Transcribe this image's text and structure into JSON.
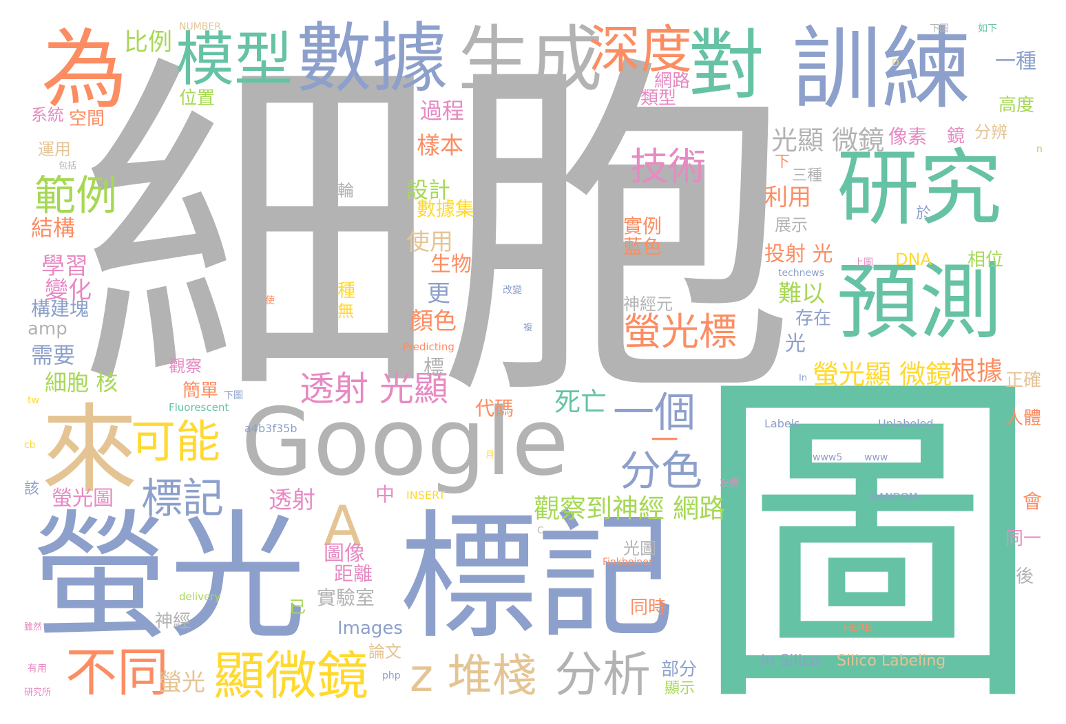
{
  "palette": {
    "gray": "#b3b3b3",
    "teal": "#66c2a5",
    "orange": "#fc8d62",
    "blue": "#8da0cb",
    "pink": "#e78ac3",
    "green": "#a6d854",
    "yellow": "#ffd92f",
    "tan": "#e5c494"
  },
  "words": [
    {
      "text": "細胞",
      "color": "gray"
    },
    {
      "text": "圖",
      "color": "teal"
    },
    {
      "text": "螢光",
      "color": "blue"
    },
    {
      "text": "標記",
      "color": "blue"
    },
    {
      "text": "訓練",
      "color": "blue"
    },
    {
      "text": "數據",
      "color": "blue"
    },
    {
      "text": "生成",
      "color": "gray"
    },
    {
      "text": "為",
      "color": "orange"
    },
    {
      "text": "模型",
      "color": "teal"
    },
    {
      "text": "深度",
      "color": "orange"
    },
    {
      "text": "對",
      "color": "teal"
    },
    {
      "text": "研究",
      "color": "teal"
    },
    {
      "text": "預測",
      "color": "teal"
    },
    {
      "text": "Google",
      "color": "gray"
    },
    {
      "text": "來",
      "color": "tan"
    },
    {
      "text": "A",
      "color": "tan"
    },
    {
      "text": "可能",
      "color": "yellow"
    },
    {
      "text": "顯微鏡",
      "color": "yellow"
    },
    {
      "text": "不同",
      "color": "orange"
    },
    {
      "text": "z 堆棧",
      "color": "tan"
    },
    {
      "text": "分析",
      "color": "gray"
    },
    {
      "text": "標記",
      "color": "blue"
    },
    {
      "text": "分色",
      "color": "blue"
    },
    {
      "text": "一個",
      "color": "blue"
    },
    {
      "text": "範例",
      "color": "green"
    },
    {
      "text": "比例",
      "color": "green"
    },
    {
      "text": "技術",
      "color": "pink"
    },
    {
      "text": "螢光標",
      "color": "orange"
    },
    {
      "text": "透射 光顯",
      "color": "pink"
    },
    {
      "text": "螢光顯 微鏡",
      "color": "yellow"
    },
    {
      "text": "觀察到神經 網路",
      "color": "green"
    },
    {
      "text": "死亡",
      "color": "teal"
    },
    {
      "text": "光顯 微鏡",
      "color": "gray"
    },
    {
      "text": "根據",
      "color": "orange"
    },
    {
      "text": "學習",
      "color": "pink"
    },
    {
      "text": "變化",
      "color": "pink"
    },
    {
      "text": "需要",
      "color": "blue"
    },
    {
      "text": "細胞 核",
      "color": "green"
    },
    {
      "text": "結構",
      "color": "orange"
    },
    {
      "text": "構建塊",
      "color": "blue"
    },
    {
      "text": "amp",
      "color": "gray"
    },
    {
      "text": "空間",
      "color": "orange"
    },
    {
      "text": "系統",
      "color": "pink"
    },
    {
      "text": "運用",
      "color": "tan"
    },
    {
      "text": "位置",
      "color": "green"
    },
    {
      "text": "過程",
      "color": "pink"
    },
    {
      "text": "樣本",
      "color": "orange"
    },
    {
      "text": "設計",
      "color": "green"
    },
    {
      "text": "數據集",
      "color": "yellow"
    },
    {
      "text": "使用",
      "color": "tan"
    },
    {
      "text": "生物",
      "color": "orange"
    },
    {
      "text": "更",
      "color": "blue"
    },
    {
      "text": "顏色",
      "color": "orange"
    },
    {
      "text": "標",
      "color": "gray"
    },
    {
      "text": "代碼",
      "color": "orange"
    },
    {
      "text": "實例",
      "color": "orange"
    },
    {
      "text": "藍色",
      "color": "orange"
    },
    {
      "text": "神經元",
      "color": "gray"
    },
    {
      "text": "網路",
      "color": "pink"
    },
    {
      "text": "類型",
      "color": "pink"
    },
    {
      "text": "一種",
      "color": "blue"
    },
    {
      "text": "高度",
      "color": "green"
    },
    {
      "text": "分辨",
      "color": "tan"
    },
    {
      "text": "像素",
      "color": "pink"
    },
    {
      "text": "利用",
      "color": "orange"
    },
    {
      "text": "三種",
      "color": "gray"
    },
    {
      "text": "展示",
      "color": "gray"
    },
    {
      "text": "投射 光",
      "color": "orange"
    },
    {
      "text": "難以",
      "color": "green"
    },
    {
      "text": "存在",
      "color": "blue"
    },
    {
      "text": "光",
      "color": "blue"
    },
    {
      "text": "相位",
      "color": "green"
    },
    {
      "text": "DNA",
      "color": "yellow"
    },
    {
      "text": "正確",
      "color": "tan"
    },
    {
      "text": "人體",
      "color": "orange"
    },
    {
      "text": "中",
      "color": "pink"
    },
    {
      "text": "透射",
      "color": "pink"
    },
    {
      "text": "圖像",
      "color": "pink"
    },
    {
      "text": "距離",
      "color": "pink"
    },
    {
      "text": "實驗室",
      "color": "gray"
    },
    {
      "text": "Images",
      "color": "blue"
    },
    {
      "text": "論文",
      "color": "tan"
    },
    {
      "text": "已",
      "color": "green"
    },
    {
      "text": "螢光圖",
      "color": "pink"
    },
    {
      "text": "簡單",
      "color": "orange"
    },
    {
      "text": "觀察",
      "color": "pink"
    },
    {
      "text": "神經",
      "color": "gray"
    },
    {
      "text": "螢光",
      "color": "tan"
    },
    {
      "text": "部分",
      "color": "blue"
    },
    {
      "text": "顯示",
      "color": "green"
    },
    {
      "text": "同時",
      "color": "orange"
    },
    {
      "text": "光圖",
      "color": "gray"
    },
    {
      "text": "In Silico",
      "color": "blue"
    },
    {
      "text": "Silico Labeling",
      "color": "tan"
    },
    {
      "text": "會",
      "color": "orange"
    },
    {
      "text": "同一",
      "color": "pink"
    },
    {
      "text": "後",
      "color": "gray"
    },
    {
      "text": "下",
      "color": "orange"
    },
    {
      "text": "於",
      "color": "blue"
    },
    {
      "text": "NUMBER",
      "color": "tan"
    },
    {
      "text": "INSERT",
      "color": "yellow"
    },
    {
      "text": "RANDOM",
      "color": "blue"
    },
    {
      "text": "HERE",
      "color": "orange"
    },
    {
      "text": "Labels",
      "color": "blue"
    },
    {
      "text": "Unlabeled",
      "color": "blue"
    },
    {
      "text": "a4b3f35b",
      "color": "blue"
    },
    {
      "text": "Fluorescent",
      "color": "teal"
    },
    {
      "text": "Predicting",
      "color": "orange"
    },
    {
      "text": "technews",
      "color": "blue"
    },
    {
      "text": "Finkbeiner",
      "color": "orange"
    },
    {
      "text": "delivery",
      "color": "green"
    },
    {
      "text": "php",
      "color": "blue"
    },
    {
      "text": "www5",
      "color": "blue"
    },
    {
      "text": "www",
      "color": "blue"
    },
    {
      "text": "tw",
      "color": "yellow"
    },
    {
      "text": "cb",
      "color": "yellow"
    },
    {
      "text": "In",
      "color": "blue"
    },
    {
      "text": "D",
      "color": "yellow"
    },
    {
      "text": "n",
      "color": "green"
    },
    {
      "text": "C",
      "color": "gray"
    },
    {
      "text": "該",
      "color": "blue"
    },
    {
      "text": "輪",
      "color": "gray"
    },
    {
      "text": "種",
      "color": "yellow"
    },
    {
      "text": "無",
      "color": "yellow"
    },
    {
      "text": "鏡",
      "color": "pink"
    },
    {
      "text": "一",
      "color": "orange"
    },
    {
      "text": "如下",
      "color": "teal"
    },
    {
      "text": "下圖",
      "color": "gray"
    },
    {
      "text": "上圖",
      "color": "pink"
    },
    {
      "text": "下圖",
      "color": "blue"
    },
    {
      "text": "左側",
      "color": "pink"
    },
    {
      "text": "有用",
      "color": "pink"
    },
    {
      "text": "研究所",
      "color": "pink"
    },
    {
      "text": "雖然",
      "color": "pink"
    },
    {
      "text": "包括",
      "color": "gray"
    },
    {
      "text": "月",
      "color": "yellow"
    },
    {
      "text": "使",
      "color": "orange"
    },
    {
      "text": "改變",
      "color": "blue"
    },
    {
      "text": "複",
      "color": "blue"
    }
  ]
}
